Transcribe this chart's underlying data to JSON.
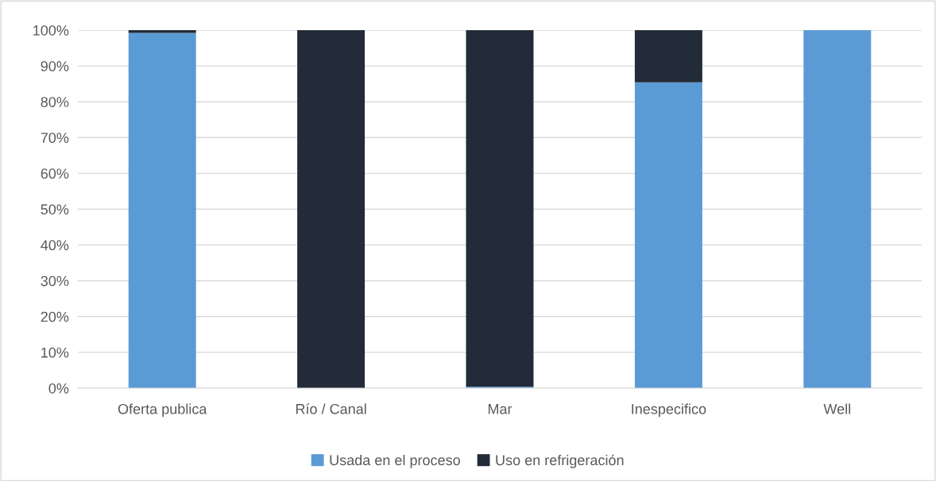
{
  "chart_data": {
    "type": "bar",
    "stacked": true,
    "categories": [
      "Oferta publica",
      "Río / Canal",
      "Mar",
      "Inespecifico",
      "Well"
    ],
    "series": [
      {
        "name": "Usada en el proceso",
        "color": "#5b9bd5",
        "values": [
          99.2,
          0,
          0.4,
          85.4,
          100
        ]
      },
      {
        "name": "Uso en refrigeración",
        "color": "#232b38",
        "values": [
          0.8,
          100,
          99.6,
          14.6,
          0
        ]
      }
    ],
    "ylim": [
      0,
      100
    ],
    "yticks": [
      {
        "value": 0,
        "label": "0%"
      },
      {
        "value": 10,
        "label": "10%"
      },
      {
        "value": 20,
        "label": "20%"
      },
      {
        "value": 30,
        "label": "30%"
      },
      {
        "value": 40,
        "label": "40%"
      },
      {
        "value": 50,
        "label": "50%"
      },
      {
        "value": 60,
        "label": "60%"
      },
      {
        "value": 70,
        "label": "70%"
      },
      {
        "value": 80,
        "label": "80%"
      },
      {
        "value": 90,
        "label": "90%"
      },
      {
        "value": 100,
        "label": "100%"
      }
    ],
    "grid": "y",
    "legend": "bottom"
  }
}
